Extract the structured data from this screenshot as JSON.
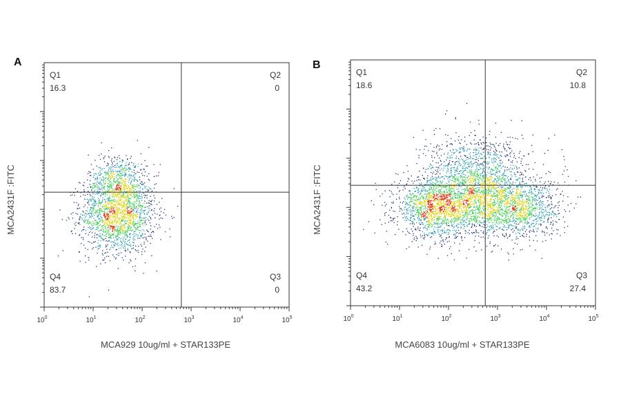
{
  "chart_data": [
    {
      "type": "scatter",
      "panel_label": "A",
      "xlabel": "MCA929 10ug/ml + STAR133PE",
      "ylabel": "MCA2431F :FITC",
      "x_scale": "log",
      "xlim": [
        0,
        5
      ],
      "x_ticks": [
        "0",
        "1",
        "2",
        "3",
        "4",
        "5"
      ],
      "y_scale": "log",
      "gates": {
        "x": 2.8,
        "y": 2.35
      },
      "quadrants": [
        {
          "name": "Q1",
          "value": "16.3",
          "position": "top-left"
        },
        {
          "name": "Q2",
          "value": "0",
          "position": "top-right"
        },
        {
          "name": "Q3",
          "value": "0",
          "position": "bottom-right"
        },
        {
          "name": "Q4",
          "value": "83.7",
          "position": "bottom-left"
        }
      ],
      "clusters": [
        {
          "x": 1.5,
          "y": 1.9,
          "sx": 0.38,
          "sy": 0.4,
          "n": 1800
        },
        {
          "x": 1.5,
          "y": 2.6,
          "sx": 0.3,
          "sy": 0.28,
          "n": 500
        }
      ],
      "grid": false
    },
    {
      "type": "scatter",
      "panel_label": "B",
      "xlabel": "MCA6083 10ug/ml + STAR133PE",
      "ylabel": "MCA2431F :FITC",
      "x_scale": "log",
      "xlim": [
        0,
        5
      ],
      "x_ticks": [
        "0",
        "1",
        "2",
        "3",
        "4",
        "5"
      ],
      "y_scale": "log",
      "gates": {
        "x": 2.75,
        "y": 2.45
      },
      "quadrants": [
        {
          "name": "Q1",
          "value": "18.6",
          "position": "top-left"
        },
        {
          "name": "Q2",
          "value": "10.8",
          "position": "top-right"
        },
        {
          "name": "Q3",
          "value": "27.4",
          "position": "bottom-right"
        },
        {
          "name": "Q4",
          "value": "43.2",
          "position": "bottom-left"
        }
      ],
      "clusters": [
        {
          "x": 1.7,
          "y": 2.0,
          "sx": 0.4,
          "sy": 0.3,
          "n": 1400
        },
        {
          "x": 2.6,
          "y": 2.1,
          "sx": 0.45,
          "sy": 0.35,
          "n": 1300
        },
        {
          "x": 3.5,
          "y": 2.0,
          "sx": 0.4,
          "sy": 0.3,
          "n": 1000
        },
        {
          "x": 2.6,
          "y": 2.8,
          "sx": 0.55,
          "sy": 0.35,
          "n": 900
        }
      ],
      "grid": false
    }
  ],
  "colors": {
    "frame": "#333333",
    "density_low": "#1a2b6e",
    "density_mid": "#2a9db0",
    "density_high_1": "#3ecf4f",
    "density_high_2": "#e0d51c",
    "density_peak": "#e23a1a"
  }
}
